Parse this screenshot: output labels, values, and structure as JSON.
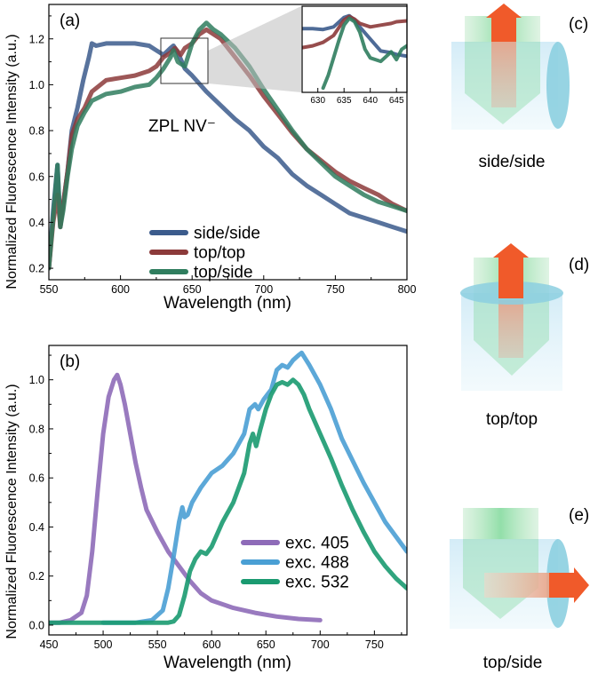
{
  "chart_data": [
    {
      "type": "line",
      "panel_label": "(a)",
      "xlabel": "Wavelength (nm)",
      "ylabel": "Normalized Fluorescence Intensity (a.u.)",
      "xlim": [
        550,
        800
      ],
      "ylim": [
        0.15,
        1.35
      ],
      "xticks": [
        "550",
        "600",
        "650",
        "700",
        "750",
        "800"
      ],
      "yticks": [
        "0.2",
        "0.4",
        "0.6",
        "0.8",
        "1.0",
        "1.2"
      ],
      "annotation": "ZPL NV⁻",
      "legend_position": "center-bottom",
      "series": [
        {
          "name": "side/side",
          "color": "#3b5b8c",
          "x": [
            550,
            553,
            556,
            558,
            560,
            563,
            566,
            570,
            574,
            578,
            580,
            583,
            590,
            600,
            610,
            620,
            625,
            630,
            635,
            637,
            640,
            645,
            650,
            660,
            670,
            680,
            690,
            700,
            710,
            720,
            730,
            740,
            750,
            760,
            770,
            780,
            790,
            800
          ],
          "y": [
            0.2,
            0.45,
            0.65,
            0.38,
            0.48,
            0.62,
            0.8,
            0.9,
            1.02,
            1.12,
            1.18,
            1.17,
            1.18,
            1.18,
            1.18,
            1.17,
            1.15,
            1.13,
            1.16,
            1.17,
            1.14,
            1.07,
            1.04,
            0.97,
            0.91,
            0.85,
            0.8,
            0.73,
            0.68,
            0.61,
            0.56,
            0.52,
            0.48,
            0.44,
            0.42,
            0.4,
            0.38,
            0.36
          ]
        },
        {
          "name": "top/top",
          "color": "#8c3a3a",
          "x": [
            550,
            553,
            556,
            558,
            560,
            563,
            566,
            570,
            575,
            580,
            590,
            600,
            610,
            620,
            625,
            630,
            635,
            638,
            642,
            645,
            650,
            655,
            660,
            670,
            680,
            690,
            700,
            710,
            720,
            730,
            740,
            750,
            760,
            770,
            780,
            790,
            800
          ],
          "y": [
            0.2,
            0.4,
            0.52,
            0.38,
            0.48,
            0.62,
            0.78,
            0.85,
            0.9,
            0.97,
            1.02,
            1.03,
            1.04,
            1.06,
            1.08,
            1.12,
            1.14,
            1.16,
            1.13,
            1.16,
            1.18,
            1.22,
            1.24,
            1.2,
            1.12,
            1.04,
            0.95,
            0.87,
            0.79,
            0.72,
            0.67,
            0.62,
            0.58,
            0.55,
            0.52,
            0.48,
            0.45
          ]
        },
        {
          "name": "top/side",
          "color": "#2f7d5e",
          "x": [
            550,
            553,
            556,
            558,
            560,
            563,
            566,
            570,
            575,
            580,
            590,
            600,
            610,
            620,
            625,
            630,
            635,
            637,
            640,
            645,
            650,
            655,
            660,
            665,
            670,
            680,
            690,
            700,
            710,
            720,
            730,
            740,
            750,
            760,
            770,
            780,
            790,
            800
          ],
          "y": [
            0.2,
            0.42,
            0.65,
            0.38,
            0.45,
            0.6,
            0.72,
            0.82,
            0.88,
            0.93,
            0.96,
            0.97,
            0.99,
            1.0,
            1.03,
            1.07,
            1.12,
            1.15,
            1.1,
            1.08,
            1.18,
            1.24,
            1.27,
            1.24,
            1.22,
            1.16,
            1.08,
            0.98,
            0.89,
            0.8,
            0.72,
            0.66,
            0.6,
            0.56,
            0.52,
            0.49,
            0.47,
            0.45
          ]
        }
      ]
    },
    {
      "type": "line",
      "panel_label": "inset",
      "xlim": [
        627,
        647
      ],
      "xticks": [
        "630",
        "635",
        "640",
        "645"
      ],
      "series": [
        {
          "name": "side/side",
          "color": "#3b5b8c",
          "x": [
            627,
            629,
            631,
            633,
            635,
            636,
            637,
            638,
            640,
            642,
            644,
            645,
            647
          ],
          "y": [
            0.74,
            0.74,
            0.73,
            0.76,
            0.87,
            0.89,
            0.84,
            0.76,
            0.62,
            0.48,
            0.46,
            0.44,
            0.42
          ]
        },
        {
          "name": "top/top",
          "color": "#8c3a3a",
          "x": [
            627,
            629,
            631,
            633,
            635,
            636,
            637,
            638,
            640,
            642,
            644,
            645,
            647
          ],
          "y": [
            0.52,
            0.54,
            0.58,
            0.66,
            0.84,
            0.88,
            0.85,
            0.8,
            0.76,
            0.78,
            0.8,
            0.82,
            0.83
          ]
        },
        {
          "name": "top/side",
          "color": "#2f7d5e",
          "x": [
            631,
            632,
            633,
            634,
            635,
            636,
            637,
            638,
            639,
            640,
            642,
            644,
            645,
            646,
            647
          ],
          "y": [
            0.05,
            0.2,
            0.4,
            0.6,
            0.78,
            0.86,
            0.82,
            0.7,
            0.5,
            0.4,
            0.36,
            0.47,
            0.38,
            0.5,
            0.54
          ]
        }
      ]
    },
    {
      "type": "line",
      "panel_label": "(b)",
      "xlabel": "Wavelength (nm)",
      "ylabel": "Normalized Fluorescence Intensity (a.u.)",
      "xlim": [
        450,
        780
      ],
      "ylim": [
        -0.04,
        1.14
      ],
      "xticks": [
        "450",
        "500",
        "550",
        "600",
        "650",
        "700",
        "750"
      ],
      "yticks": [
        "0.0",
        "0.2",
        "0.4",
        "0.6",
        "0.8",
        "1.0"
      ],
      "legend_position": "bottom-right",
      "series": [
        {
          "name": "exc. 405",
          "color": "#8e6bb8",
          "x": [
            450,
            460,
            470,
            480,
            485,
            490,
            495,
            500,
            505,
            510,
            513,
            516,
            520,
            525,
            530,
            535,
            540,
            550,
            560,
            570,
            580,
            590,
            600,
            620,
            640,
            660,
            680,
            700
          ],
          "y": [
            0.01,
            0.01,
            0.02,
            0.05,
            0.12,
            0.3,
            0.55,
            0.78,
            0.93,
            1.0,
            1.02,
            0.98,
            0.9,
            0.78,
            0.66,
            0.56,
            0.47,
            0.38,
            0.3,
            0.24,
            0.18,
            0.13,
            0.1,
            0.07,
            0.05,
            0.035,
            0.025,
            0.02
          ]
        },
        {
          "name": "exc. 488",
          "color": "#4a9fd4",
          "x": [
            500,
            530,
            545,
            555,
            560,
            565,
            570,
            573,
            575,
            578,
            582,
            590,
            600,
            610,
            620,
            630,
            635,
            640,
            643,
            648,
            655,
            660,
            665,
            670,
            675,
            680,
            683,
            690,
            700,
            710,
            720,
            730,
            740,
            750,
            760,
            770,
            780
          ],
          "y": [
            0.01,
            0.01,
            0.02,
            0.06,
            0.15,
            0.28,
            0.42,
            0.48,
            0.44,
            0.45,
            0.5,
            0.56,
            0.62,
            0.65,
            0.7,
            0.78,
            0.88,
            0.9,
            0.88,
            0.92,
            0.96,
            1.04,
            1.06,
            1.05,
            1.08,
            1.1,
            1.11,
            1.06,
            0.98,
            0.88,
            0.76,
            0.67,
            0.58,
            0.5,
            0.42,
            0.36,
            0.3
          ]
        },
        {
          "name": "exc. 532",
          "color": "#1a9a70",
          "x": [
            450,
            560,
            565,
            570,
            575,
            580,
            585,
            590,
            595,
            600,
            610,
            620,
            630,
            635,
            638,
            641,
            645,
            650,
            655,
            660,
            665,
            670,
            675,
            680,
            685,
            690,
            700,
            710,
            720,
            730,
            740,
            750,
            760,
            770,
            780
          ],
          "y": [
            0.01,
            0.01,
            0.015,
            0.04,
            0.12,
            0.22,
            0.27,
            0.3,
            0.29,
            0.32,
            0.42,
            0.5,
            0.62,
            0.74,
            0.78,
            0.73,
            0.8,
            0.88,
            0.94,
            0.98,
            0.99,
            0.98,
            1.0,
            0.98,
            0.94,
            0.88,
            0.78,
            0.68,
            0.57,
            0.47,
            0.38,
            0.3,
            0.24,
            0.19,
            0.15
          ]
        }
      ]
    }
  ],
  "schematics": [
    {
      "label": "(c)",
      "caption": "side/side"
    },
    {
      "label": "(d)",
      "caption": "top/top"
    },
    {
      "label": "(e)",
      "caption": "top/side"
    }
  ]
}
